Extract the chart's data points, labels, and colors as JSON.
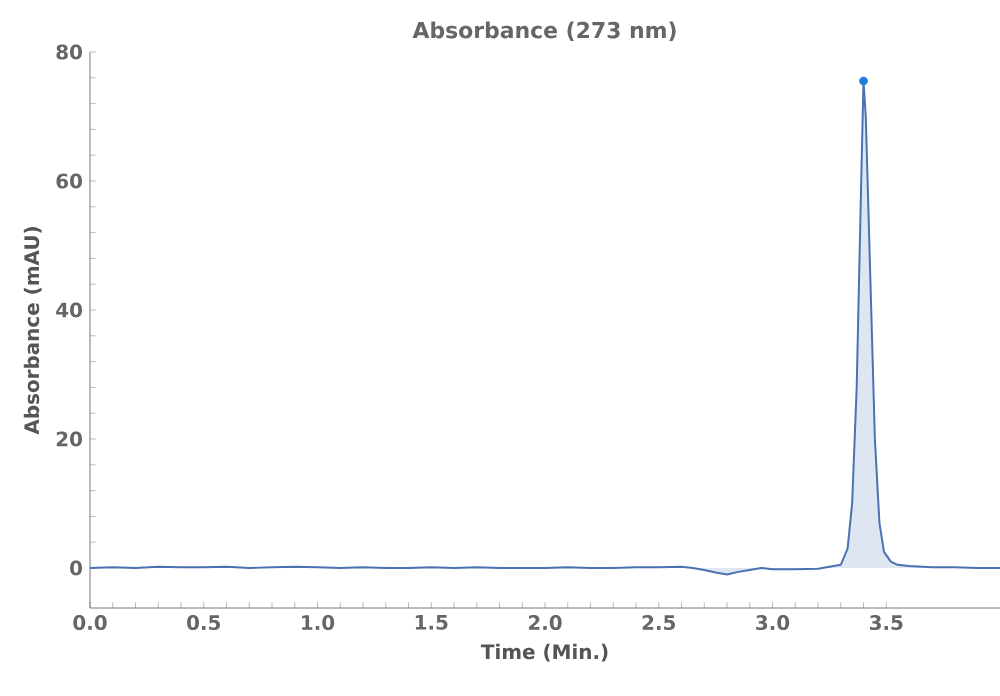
{
  "chart_data": {
    "type": "area",
    "title": "Absorbance (273 nm)",
    "xlabel": "Time  (Min.)",
    "ylabel": "Absorbance  (mAU)",
    "xlim": [
      0,
      4.0
    ],
    "ylim": [
      -6.2,
      80
    ],
    "xticks": [
      {
        "value": 0,
        "label": "0.0"
      },
      {
        "value": 0.5,
        "label": "0.5"
      },
      {
        "value": 1,
        "label": "1.0"
      },
      {
        "value": 1.5,
        "label": "1.5"
      },
      {
        "value": 2,
        "label": "2.0"
      },
      {
        "value": 2.5,
        "label": "2.5"
      },
      {
        "value": 3,
        "label": "3.0"
      },
      {
        "value": 3.5,
        "label": "3.5"
      }
    ],
    "yticks": [
      0,
      20,
      40,
      60,
      80
    ],
    "series": [
      {
        "color": "#4a72b0",
        "x": [
          0,
          0.1,
          0.2,
          0.3,
          0.4,
          0.5,
          0.6,
          0.7,
          0.8,
          0.9,
          1.0,
          1.1,
          1.2,
          1.3,
          1.4,
          1.5,
          1.6,
          1.7,
          1.8,
          1.9,
          2.0,
          2.1,
          2.2,
          2.3,
          2.4,
          2.5,
          2.6,
          2.65,
          2.7,
          2.75,
          2.8,
          2.85,
          2.9,
          2.95,
          3.0,
          3.1,
          3.2,
          3.3,
          3.33,
          3.35,
          3.37,
          3.39,
          3.4,
          3.41,
          3.43,
          3.45,
          3.47,
          3.49,
          3.52,
          3.55,
          3.6,
          3.7,
          3.8,
          3.9,
          4.0
        ],
        "values": [
          0,
          0.1,
          0,
          0.2,
          0.1,
          0.1,
          0.2,
          0,
          0.1,
          0.2,
          0.1,
          0,
          0.1,
          0,
          0,
          0.1,
          0,
          0.1,
          0,
          0,
          0,
          0.1,
          0,
          0,
          0.1,
          0.1,
          0.2,
          0,
          -0.3,
          -0.7,
          -1.0,
          -0.6,
          -0.3,
          0,
          -0.2,
          -0.2,
          -0.1,
          0.5,
          3,
          10,
          28,
          60,
          75.5,
          70,
          45,
          20,
          7,
          2.5,
          1,
          0.5,
          0.3,
          0.1,
          0.1,
          0,
          0
        ]
      },
      {
        "type": "scatter",
        "color": "#1f7de0",
        "marker": "circle",
        "x": [
          3.4
        ],
        "values": [
          75.5
        ]
      }
    ]
  }
}
